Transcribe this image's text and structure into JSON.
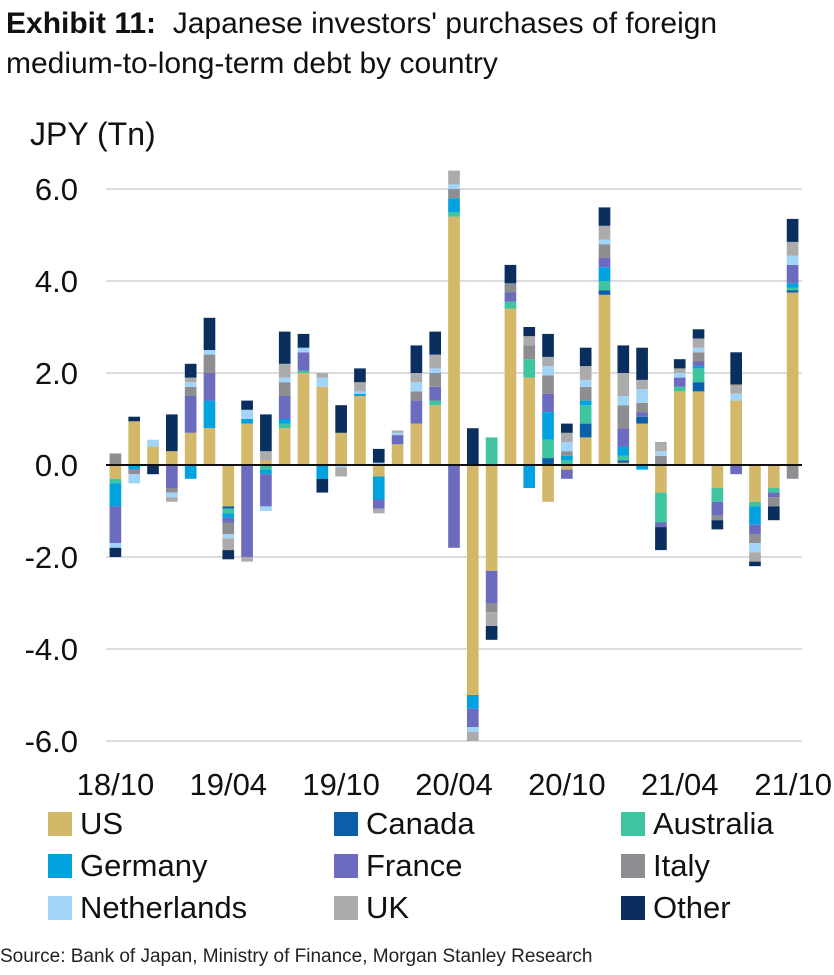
{
  "title": {
    "exhibit": "Exhibit 11:",
    "text": "Japanese investors' purchases of foreign medium-to-long-term debt by country"
  },
  "source": "Source: Bank of Japan, Ministry of Finance, Morgan Stanley Research",
  "chart_data": {
    "type": "bar",
    "stacked": true,
    "ylabel": "JPY (Tn)",
    "ylim": [
      -6.0,
      6.0
    ],
    "yticks": [
      "6.0",
      "4.0",
      "2.0",
      "0.0",
      "-2.0",
      "-4.0",
      "-6.0"
    ],
    "ytick_values": [
      6,
      4,
      2,
      0,
      -2,
      -4,
      -6
    ],
    "grid": true,
    "legend_position": "bottom",
    "x_tick_labels": [
      "18/10",
      "19/04",
      "19/10",
      "20/04",
      "20/10",
      "21/04",
      "21/10"
    ],
    "x_tick_index": [
      0,
      6,
      12,
      18,
      24,
      30,
      36
    ],
    "categories": [
      "18/10",
      "18/11",
      "18/12",
      "19/01",
      "19/02",
      "19/03",
      "19/04",
      "19/05",
      "19/06",
      "19/07",
      "19/08",
      "19/09",
      "19/10",
      "19/11",
      "19/12",
      "20/01",
      "20/02",
      "20/03",
      "20/04",
      "20/05",
      "20/06",
      "20/07",
      "20/08",
      "20/09",
      "20/10",
      "20/11",
      "20/12",
      "21/01",
      "21/02",
      "21/03",
      "21/04",
      "21/05",
      "21/06",
      "21/07",
      "21/08",
      "21/09",
      "21/10"
    ],
    "series": [
      {
        "name": "US",
        "color": "#d4b86a",
        "values": [
          -0.3,
          0.95,
          0.4,
          0.3,
          0.7,
          0.8,
          -0.9,
          0.9,
          0.1,
          0.8,
          2.0,
          1.7,
          0.7,
          1.5,
          -0.25,
          0.45,
          0.9,
          1.3,
          5.4,
          -5.0,
          -2.3,
          3.4,
          1.9,
          -0.8,
          -0.1,
          0.6,
          3.7,
          0.05,
          0.9,
          -0.6,
          1.6,
          1.6,
          -0.5,
          1.4,
          -0.8,
          -0.5,
          3.75
        ]
      },
      {
        "name": "Canada",
        "color": "#0b5ea8",
        "values": [
          0,
          0,
          0,
          0,
          0,
          0,
          -0.05,
          0,
          0,
          0,
          0,
          0,
          0,
          0,
          0,
          0,
          0,
          0,
          0,
          0,
          0,
          0,
          0,
          0.15,
          0,
          0.3,
          0.1,
          0.05,
          0.15,
          0,
          0,
          0.2,
          0,
          0,
          0,
          0,
          0.05
        ]
      },
      {
        "name": "Australia",
        "color": "#3fc4a0",
        "values": [
          -0.1,
          0,
          0,
          0,
          0,
          0,
          -0.1,
          0,
          -0.1,
          0.1,
          0.05,
          0,
          0,
          0,
          0,
          0,
          0,
          0.1,
          0.1,
          0,
          0.6,
          0.15,
          0.4,
          0.4,
          0.1,
          0.4,
          0.2,
          0.1,
          0,
          -0.65,
          0.1,
          0.3,
          -0.3,
          0,
          -0.1,
          -0.1,
          0.05
        ]
      },
      {
        "name": "Germany",
        "color": "#00a3e0",
        "values": [
          -0.5,
          -0.1,
          0,
          0,
          -0.3,
          0.6,
          -0.1,
          0.1,
          -0.1,
          0.1,
          0,
          -0.3,
          0,
          0.05,
          -0.5,
          0,
          0,
          0,
          0.3,
          -0.3,
          0,
          0,
          -0.5,
          0.6,
          0.1,
          0.1,
          0.3,
          0.2,
          -0.1,
          0,
          0,
          0.05,
          0,
          0,
          -0.4,
          0,
          0.1
        ]
      },
      {
        "name": "France",
        "color": "#6b6bbf",
        "values": [
          -0.8,
          0,
          0,
          -0.5,
          0.8,
          0.6,
          -0.1,
          -2.0,
          -0.7,
          0.5,
          0.4,
          0,
          0,
          0,
          -0.2,
          0.2,
          0.5,
          0.3,
          -1.8,
          -0.4,
          -0.7,
          0.2,
          0,
          0.4,
          -0.2,
          0,
          0.2,
          0.4,
          0.1,
          -0.1,
          0.2,
          0.1,
          -0.3,
          -0.2,
          -0.2,
          -0.1,
          0.4
        ]
      },
      {
        "name": "Italy",
        "color": "#8e8e92",
        "values": [
          0.25,
          -0.1,
          0,
          -0.1,
          0.2,
          0.4,
          -0.25,
          0,
          0,
          0.3,
          0,
          0,
          0,
          0,
          0,
          0,
          0.2,
          0.3,
          0.2,
          0,
          -0.2,
          0.2,
          0.3,
          0.4,
          0.1,
          0.3,
          0.3,
          0.5,
          0.2,
          0.2,
          0,
          0.2,
          -0.1,
          0,
          -0.2,
          -0.2,
          -0.3
        ]
      },
      {
        "name": "Netherlands",
        "color": "#a2d4f7",
        "values": [
          -0.1,
          -0.2,
          0.15,
          -0.1,
          0.1,
          0.1,
          -0.1,
          0.2,
          -0.1,
          0.1,
          0.1,
          0.2,
          -0.05,
          0.05,
          0.05,
          0.05,
          0.2,
          0.1,
          0.1,
          -0.1,
          0,
          0,
          0,
          0.2,
          0.2,
          0.15,
          0.1,
          0.2,
          0.3,
          0.1,
          0.1,
          0.1,
          0,
          0.15,
          -0.2,
          0,
          0.2
        ]
      },
      {
        "name": "UK",
        "color": "#ababab",
        "values": [
          0,
          0,
          0,
          -0.1,
          0.1,
          0,
          -0.25,
          -0.1,
          0.2,
          0.3,
          0,
          0.1,
          -0.2,
          0.2,
          -0.1,
          0.05,
          0.2,
          0.3,
          0.3,
          -0.2,
          -0.3,
          0,
          0.2,
          0.2,
          0.2,
          0.3,
          0.3,
          0.5,
          0.2,
          0.2,
          0.1,
          0.2,
          0,
          0.2,
          -0.2,
          0,
          0.3
        ]
      },
      {
        "name": "Other",
        "color": "#0a2f5e",
        "values": [
          -0.2,
          0.1,
          -0.2,
          0.8,
          0.3,
          0.7,
          -0.2,
          0.2,
          0.8,
          0.7,
          0.3,
          -0.3,
          0.6,
          0.3,
          0.3,
          0,
          0.6,
          0.5,
          0,
          0.8,
          -0.3,
          0.4,
          0.2,
          0.5,
          0.2,
          0.4,
          0.4,
          0.6,
          0.7,
          -0.5,
          0.2,
          0.2,
          -0.2,
          0.7,
          -0.1,
          -0.3,
          0.5
        ]
      }
    ]
  }
}
